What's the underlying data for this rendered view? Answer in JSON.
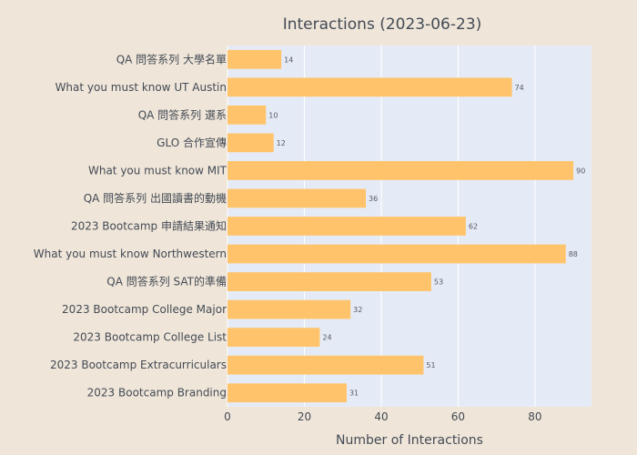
{
  "chart_data": {
    "type": "bar",
    "orientation": "horizontal",
    "title": "Interactions (2023-06-23)",
    "xlabel": "Number of Interactions",
    "ylabel": "",
    "xlim": [
      0,
      94.7
    ],
    "xticks": [
      0,
      20,
      40,
      60,
      80
    ],
    "grid": true,
    "categories": [
      "QA 問答系列 大學名單",
      "What you must know UT Austin",
      "QA 問答系列 選系",
      "GLO 合作宣傳",
      "What you must know MIT",
      "QA 問答系列 出國讀書的動機",
      "2023 Bootcamp 申請結果通知",
      "What you must know Northwestern",
      "QA 問答系列 SAT的準備",
      "2023 Bootcamp College Major",
      "2023 Bootcamp College List",
      "2023 Bootcamp Extracurriculars",
      "2023 Bootcamp Branding"
    ],
    "values": [
      14,
      74,
      10,
      12,
      90,
      36,
      62,
      88,
      53,
      32,
      24,
      51,
      31
    ],
    "colors": {
      "bar": "#ffc46b",
      "plot_bg": "#e5ebf6",
      "page_bg": "#efe6d9",
      "grid": "#ffffff",
      "text": "#444a55"
    }
  }
}
